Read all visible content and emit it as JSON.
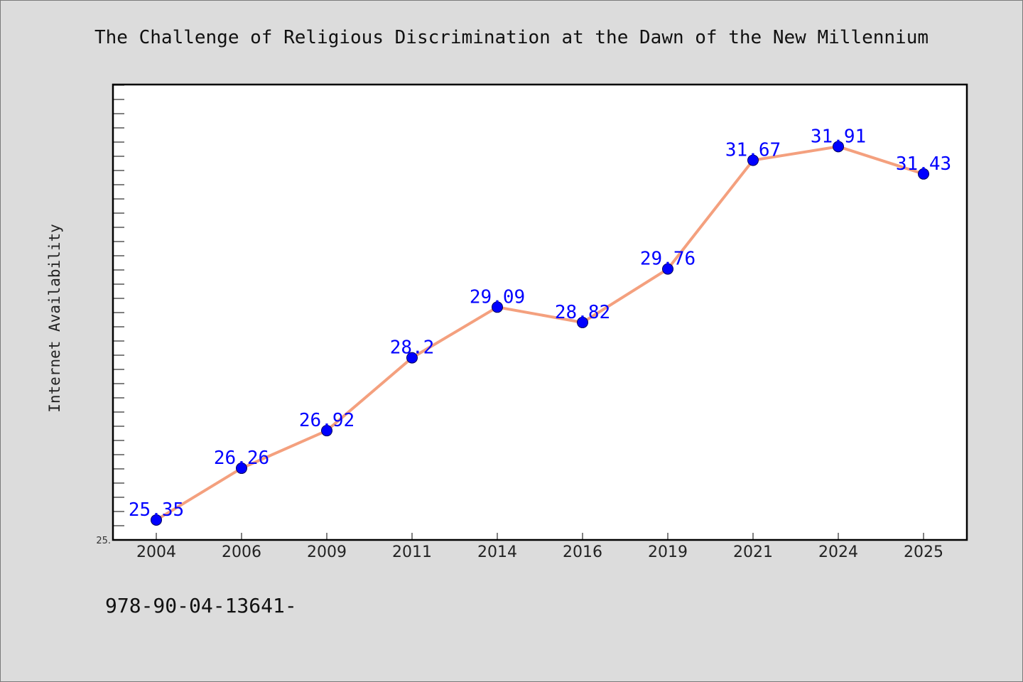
{
  "chart_data": {
    "type": "line",
    "title": "The Challenge of Religious Discrimination at the Dawn of the New Millennium",
    "xlabel": "",
    "ylabel": "Internet Availability",
    "categories": [
      "2004",
      "2006",
      "2009",
      "2011",
      "2014",
      "2016",
      "2019",
      "2021",
      "2024",
      "2025"
    ],
    "series": [
      {
        "values": [
          25.35,
          26.26,
          26.92,
          28.2,
          29.09,
          28.82,
          29.76,
          31.67,
          31.91,
          31.43
        ],
        "value_labels": [
          "25.35",
          "26.26",
          "26.92",
          "28.2",
          "29.09",
          "28.82",
          "29.76",
          "31.67",
          "31.91",
          "31.43"
        ]
      }
    ],
    "ylim": [
      25.0,
      33.0
    ],
    "y_tick_labels": [
      "25."
    ],
    "grid": false,
    "legend": "none",
    "colors": {
      "line": "#f4a07e",
      "marker": "#0000ff",
      "marker_edge": "#00005a",
      "value_label": "#0000ff",
      "plot_background": "#ffffff",
      "figure_background": "#dcdcdc"
    }
  },
  "footer": {
    "text": "978-90-04-13641-"
  }
}
